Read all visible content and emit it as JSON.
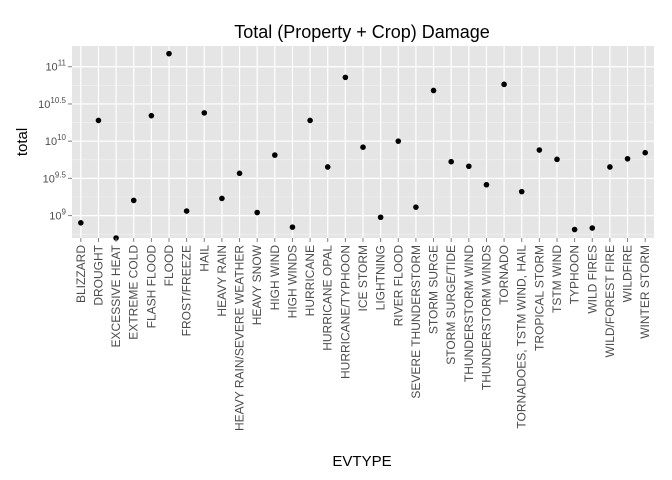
{
  "chart_data": {
    "type": "scatter",
    "title": "Total (Property + Crop) Damage",
    "xlabel": "EVTYPE",
    "ylabel": "total",
    "y_scale": "log10",
    "ylim": [
      500000000,
      190000000000
    ],
    "grid": true,
    "background": "#e5e5e5",
    "y_ticks": [
      {
        "value": 1000000000,
        "base": "10",
        "exp": "9"
      },
      {
        "value": 3162277660,
        "base": "10",
        "exp": "9.5"
      },
      {
        "value": 10000000000,
        "base": "10",
        "exp": "10"
      },
      {
        "value": 31622776600,
        "base": "10",
        "exp": "10.5"
      },
      {
        "value": 100000000000,
        "base": "10",
        "exp": "11"
      }
    ],
    "categories": [
      "BLIZZARD",
      "DROUGHT",
      "EXCESSIVE HEAT",
      "EXTREME COLD",
      "FLASH FLOOD",
      "FLOOD",
      "FROST/FREEZE",
      "HAIL",
      "HEAVY RAIN",
      "HEAVY RAIN/SEVERE WEATHER",
      "HEAVY SNOW",
      "HIGH WIND",
      "HIGH WINDS",
      "HURRICANE",
      "HURRICANE OPAL",
      "HURRICANE/TYPHOON",
      "ICE STORM",
      "LIGHTNING",
      "RIVER FLOOD",
      "SEVERE THUNDERSTORM",
      "STORM SURGE",
      "STORM SURGE/TIDE",
      "THUNDERSTORM WIND",
      "THUNDERSTORM WINDS",
      "TORNADO",
      "TORNADOES, TSTM WIND, HAIL",
      "TROPICAL STORM",
      "TSTM WIND",
      "TYPHOON",
      "WILD FIRES",
      "WILD/FOREST FIRE",
      "WILDFIRE",
      "WINTER STORM"
    ],
    "values": [
      800000000,
      19000000000,
      500000000,
      1600000000,
      22000000000,
      150000000000,
      1150000000,
      24000000000,
      1700000000,
      3700000000,
      1100000000,
      6500000000,
      700000000,
      19000000000,
      4500000000,
      72000000000,
      8300000000,
      950000000,
      10000000000,
      1300000000,
      48000000000,
      5300000000,
      4600000000,
      2600000000,
      58000000000,
      2100000000,
      7600000000,
      5700000000,
      650000000,
      680000000,
      4500000000,
      5800000000,
      7000000000
    ]
  }
}
